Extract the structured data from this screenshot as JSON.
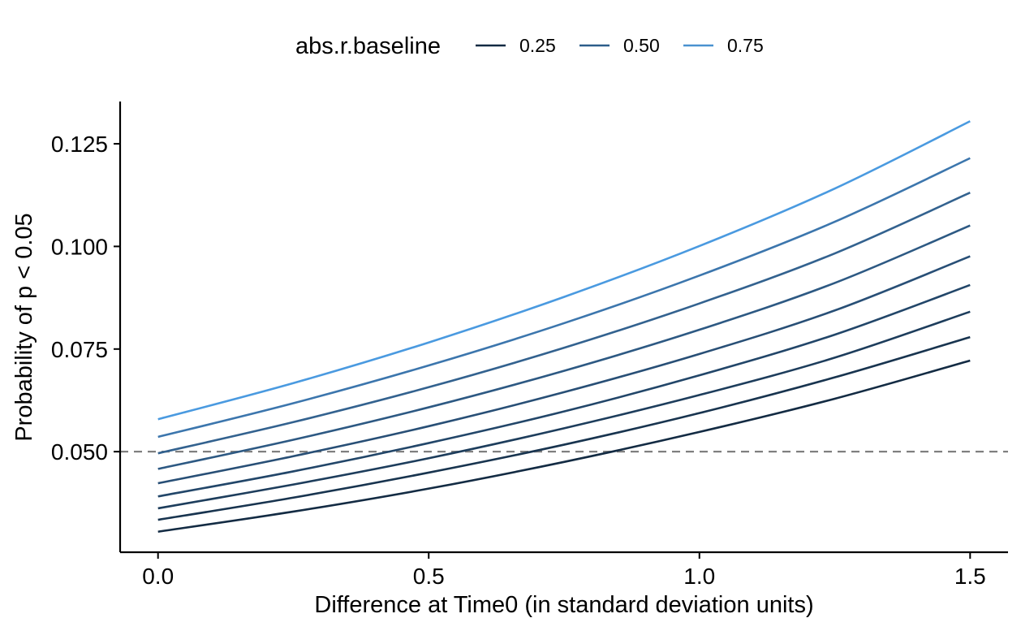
{
  "chart_data": {
    "type": "line",
    "xlabel": "Difference at Time0 (in standard deviation units)",
    "ylabel": "Probability of p < 0.05",
    "xlim": [
      -0.07,
      1.57
    ],
    "ylim": [
      0.0255,
      0.1353
    ],
    "x_ticks": [
      {
        "value": 0.0,
        "label": "0.0"
      },
      {
        "value": 0.5,
        "label": "0.5"
      },
      {
        "value": 1.0,
        "label": "1.0"
      },
      {
        "value": 1.5,
        "label": "1.5"
      }
    ],
    "y_ticks": [
      {
        "value": 0.05,
        "label": "0.050"
      },
      {
        "value": 0.075,
        "label": "0.075"
      },
      {
        "value": 0.1,
        "label": "0.100"
      },
      {
        "value": 0.125,
        "label": "0.125"
      }
    ],
    "grid": false,
    "reference_line": {
      "y": 0.05,
      "style": "dashed",
      "color": "#808080"
    },
    "legend": {
      "title": "abs.r.baseline",
      "placement": "top",
      "entries": [
        {
          "label": "0.25",
          "color": "#132B43"
        },
        {
          "label": "0.50",
          "color": "#2D5E8A"
        },
        {
          "label": "0.75",
          "color": "#4A92D0"
        }
      ]
    },
    "x": [
      0.0,
      0.25,
      0.5,
      0.75,
      1.0,
      1.25,
      1.5
    ],
    "series": [
      {
        "color": "#132B43",
        "values": [
          0.0305,
          0.0354,
          0.041,
          0.0475,
          0.0548,
          0.0629,
          0.0722
        ]
      },
      {
        "color": "#18344F",
        "values": [
          0.0334,
          0.0388,
          0.0449,
          0.0517,
          0.0594,
          0.0681,
          0.0779
        ]
      },
      {
        "color": "#1D3D5C",
        "values": [
          0.0362,
          0.042,
          0.0484,
          0.0557,
          0.0638,
          0.0729,
          0.0841
        ]
      },
      {
        "color": "#224669",
        "values": [
          0.0391,
          0.0452,
          0.0521,
          0.0598,
          0.0686,
          0.0785,
          0.0906
        ]
      },
      {
        "color": "#284F76",
        "values": [
          0.0423,
          0.0489,
          0.0562,
          0.0645,
          0.0738,
          0.0844,
          0.0976
        ]
      },
      {
        "color": "#2D5983",
        "values": [
          0.0458,
          0.0529,
          0.0608,
          0.0697,
          0.0797,
          0.0911,
          0.1051
        ]
      },
      {
        "color": "#33628F",
        "values": [
          0.0496,
          0.0572,
          0.0657,
          0.0753,
          0.0861,
          0.0983,
          0.1131
        ]
      },
      {
        "color": "#3C76AD",
        "values": [
          0.0536,
          0.0618,
          0.071,
          0.0813,
          0.0929,
          0.106,
          0.1215
        ]
      },
      {
        "color": "#4A9AE0",
        "values": [
          0.0579,
          0.0667,
          0.0766,
          0.0877,
          0.1001,
          0.1141,
          0.1305
        ]
      }
    ]
  }
}
